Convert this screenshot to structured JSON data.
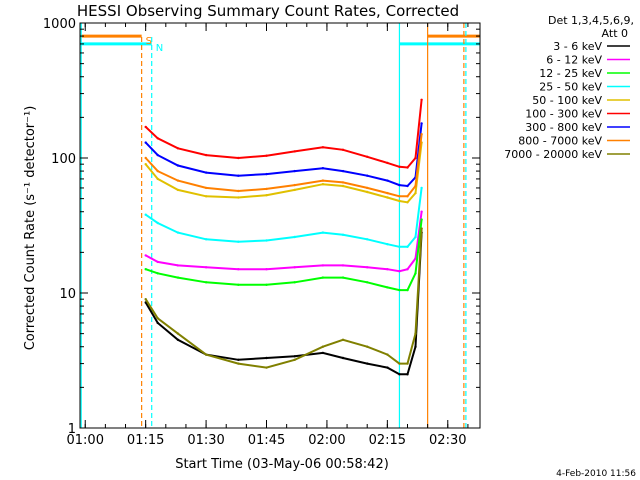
{
  "chart_data": {
    "type": "line",
    "title": "HESSI Observing Summary Count Rates, Corrected",
    "xlabel": "Start Time (03-May-06 00:58:42)",
    "ylabel": "Corrected Count Rate (s⁻¹ detector⁻¹)",
    "y_scale": "log",
    "ylim": [
      1,
      1000
    ],
    "xlim": [
      "00:58:42",
      "02:38:00"
    ],
    "x_ticks": [
      "01:00",
      "01:15",
      "01:30",
      "01:45",
      "02:00",
      "02:15",
      "02:30"
    ],
    "y_ticks": [
      "1",
      "10",
      "100",
      "1000"
    ],
    "legend_header": [
      "Det 1,3,4,5,6,9,",
      "Att 0"
    ],
    "legend_placement": "top-right",
    "grid": false,
    "footer_date": "4-Feb-2010 11:56",
    "markers": [
      {
        "label": "S",
        "color": "#ff8000",
        "time": "01:14:00",
        "style": "dashed"
      },
      {
        "label": "N",
        "color": "#00ffff",
        "time": "01:16:30",
        "style": "dashed"
      }
    ],
    "vertical_lines": [
      {
        "color": "#00ffff",
        "time": "00:59:00",
        "style": "solid"
      },
      {
        "color": "#00ffff",
        "time": "02:18:00",
        "style": "solid"
      },
      {
        "color": "#ff8000",
        "time": "02:25:00",
        "style": "solid"
      },
      {
        "color": "#ff8000",
        "time": "02:34:00",
        "style": "dashed"
      },
      {
        "color": "#00ffff",
        "time": "02:34:30",
        "style": "dashed"
      }
    ],
    "time_bars": [
      {
        "color": "#ff8000",
        "segments": [
          [
            "00:58:42",
            "01:14:00"
          ],
          [
            "02:25:00",
            "02:38:00"
          ]
        ],
        "level": 800
      },
      {
        "color": "#00ffff",
        "segments": [
          [
            "00:58:42",
            "01:16:30"
          ],
          [
            "02:18:00",
            "02:38:00"
          ]
        ],
        "level": 700
      }
    ],
    "x_times": [
      "01:15:00",
      "01:18:00",
      "01:23:00",
      "01:30:00",
      "01:38:00",
      "01:45:00",
      "01:52:00",
      "01:59:00",
      "02:04:00",
      "02:10:00",
      "02:15:00",
      "02:18:00",
      "02:20:00",
      "02:22:00",
      "02:23:30"
    ],
    "series": [
      {
        "name": "3 - 6 keV",
        "color": "#000000",
        "values": [
          8.5,
          6,
          4.5,
          3.5,
          3.2,
          3.3,
          3.4,
          3.6,
          3.3,
          3,
          2.8,
          2.5,
          2.5,
          4,
          28
        ]
      },
      {
        "name": "6 - 12 keV",
        "color": "#ff00ff",
        "values": [
          19,
          17,
          16,
          15.5,
          15,
          15,
          15.5,
          16,
          16,
          15.5,
          15,
          14.5,
          15,
          18,
          40
        ]
      },
      {
        "name": "12 - 25 keV",
        "color": "#00ff00",
        "values": [
          15,
          14,
          13,
          12,
          11.5,
          11.5,
          12,
          13,
          13,
          12,
          11,
          10.5,
          10.5,
          14,
          35
        ]
      },
      {
        "name": "25 - 50 keV",
        "color": "#00ffff",
        "values": [
          38,
          33,
          28,
          25,
          24,
          24.5,
          26,
          28,
          27,
          25,
          23,
          22,
          22,
          26,
          60
        ]
      },
      {
        "name": "50 - 100 keV",
        "color": "#e0c000",
        "values": [
          90,
          70,
          58,
          52,
          51,
          53,
          58,
          64,
          62,
          56,
          51,
          48,
          47,
          55,
          130
        ]
      },
      {
        "name": "100 - 300 keV",
        "color": "#ff0000",
        "values": [
          170,
          140,
          118,
          105,
          100,
          104,
          112,
          120,
          115,
          102,
          92,
          86,
          85,
          100,
          270
        ]
      },
      {
        "name": "300 - 800 keV",
        "color": "#0000ff",
        "values": [
          130,
          105,
          88,
          78,
          74,
          76,
          80,
          84,
          80,
          74,
          68,
          63,
          62,
          72,
          180
        ]
      },
      {
        "name": "800 - 7000 keV",
        "color": "#ff8000",
        "values": [
          100,
          80,
          68,
          60,
          57,
          59,
          63,
          68,
          66,
          60,
          55,
          52,
          52,
          62,
          150
        ]
      },
      {
        "name": "7000 - 20000 keV",
        "color": "#808000",
        "values": [
          9,
          6.5,
          5,
          3.5,
          3,
          2.8,
          3.2,
          4,
          4.5,
          4,
          3.5,
          3,
          3,
          5,
          30
        ]
      }
    ]
  }
}
